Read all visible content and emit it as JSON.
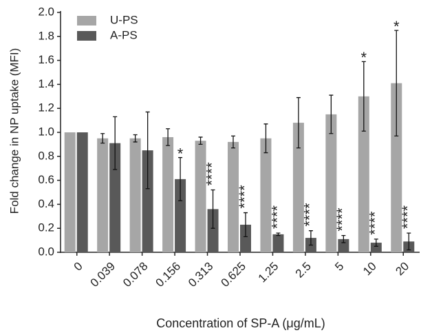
{
  "chart_data": {
    "type": "bar",
    "x_label": "Concentration of SP-A (μg/mL)",
    "y_label": "Fold change in NP uptake (MFI)",
    "categories": [
      "0",
      "0.039",
      "0.078",
      "0.156",
      "0.313",
      "0.625",
      "1.25",
      "2.5",
      "5",
      "10",
      "20"
    ],
    "series": [
      {
        "name": "U-PS",
        "color": "#a6a6a6",
        "values": [
          1.0,
          0.95,
          0.95,
          0.96,
          0.93,
          0.92,
          0.95,
          1.08,
          1.15,
          1.3,
          1.41
        ],
        "errors": [
          0,
          0.04,
          0.03,
          0.07,
          0.03,
          0.05,
          0.12,
          0.21,
          0.16,
          0.29,
          0.44
        ],
        "annotations": [
          null,
          null,
          null,
          null,
          null,
          null,
          null,
          null,
          null,
          "*",
          "*"
        ]
      },
      {
        "name": "A-PS",
        "color": "#595959",
        "values": [
          1.0,
          0.91,
          0.85,
          0.61,
          0.36,
          0.23,
          0.15,
          0.12,
          0.11,
          0.08,
          0.09
        ],
        "errors": [
          0,
          0.22,
          0.32,
          0.18,
          0.16,
          0.1,
          0.01,
          0.06,
          0.03,
          0.03,
          0.07
        ],
        "annotations": [
          null,
          null,
          null,
          "*",
          "****",
          "****",
          "****",
          "****",
          "****",
          "****",
          "****"
        ]
      }
    ],
    "ylim": [
      0,
      2
    ],
    "yticks": [
      {
        "value": 0,
        "label": "0.0"
      },
      0.2,
      0.4,
      0.6,
      0.8,
      {
        "value": 1,
        "label": "1.0"
      },
      1.2,
      1.4,
      1.6,
      1.8,
      {
        "value": 2,
        "label": "2.0"
      }
    ],
    "legend": "upper left"
  }
}
